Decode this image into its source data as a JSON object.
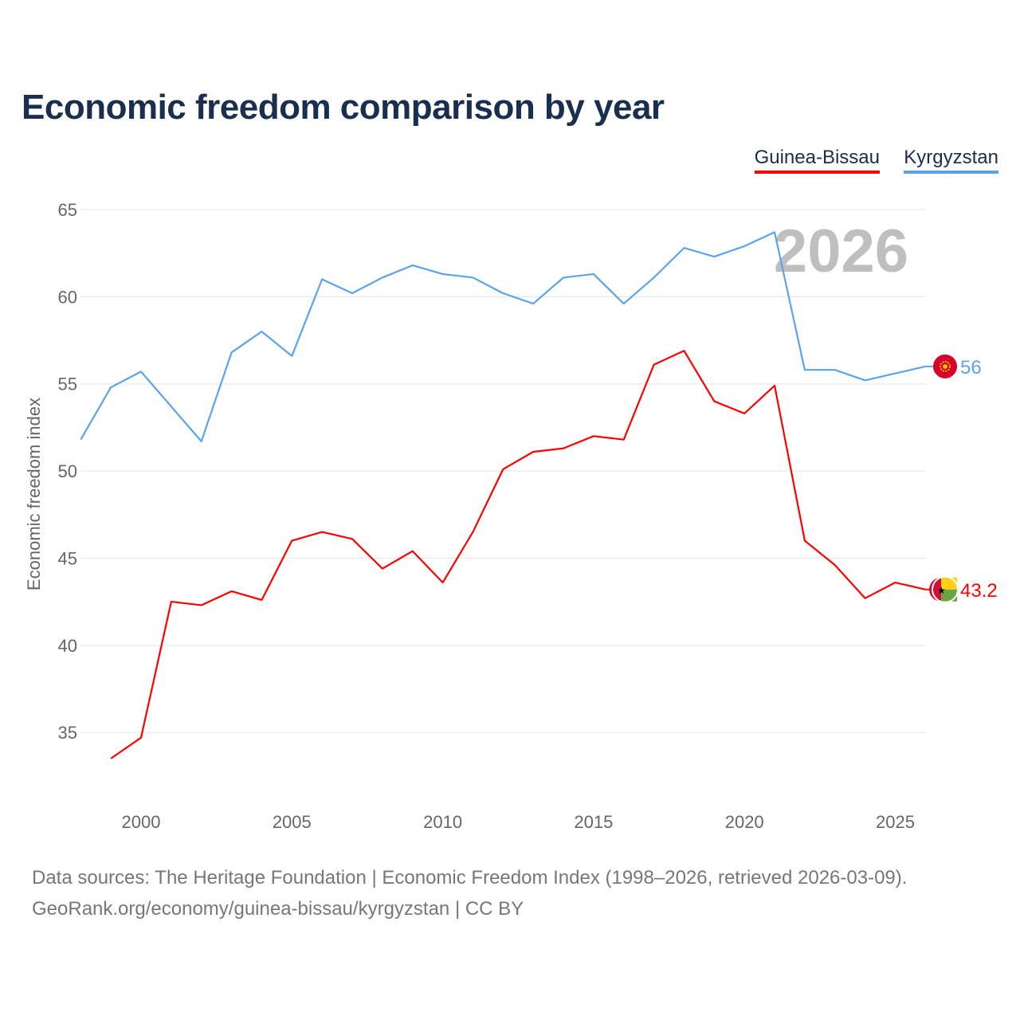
{
  "chart_data": {
    "type": "line",
    "title": "Economic freedom comparison by year",
    "xlabel": "",
    "ylabel": "Economic freedom index",
    "xlim": [
      1998,
      2026
    ],
    "ylim": [
      31,
      66
    ],
    "xticks": [
      2000,
      2005,
      2010,
      2015,
      2020,
      2025
    ],
    "yticks": [
      35,
      40,
      45,
      50,
      55,
      60,
      65
    ],
    "year_watermark": "2026",
    "legend_position": "top-right",
    "grid": true,
    "series": [
      {
        "name": "Guinea-Bissau",
        "color": "#ff0000",
        "end_label": "43.2",
        "x": [
          1999,
          2000,
          2001,
          2002,
          2003,
          2004,
          2005,
          2006,
          2007,
          2008,
          2009,
          2010,
          2011,
          2012,
          2013,
          2014,
          2015,
          2016,
          2017,
          2018,
          2019,
          2020,
          2021,
          2022,
          2023,
          2024,
          2025,
          2026
        ],
        "y": [
          33.5,
          34.7,
          42.5,
          42.3,
          43.1,
          42.6,
          46.0,
          46.5,
          46.1,
          44.4,
          45.4,
          43.6,
          46.5,
          50.1,
          51.1,
          51.3,
          52.0,
          51.8,
          56.1,
          56.9,
          54.0,
          53.3,
          54.9,
          46.0,
          44.6,
          42.7,
          43.6,
          43.2
        ]
      },
      {
        "name": "Kyrgyzstan",
        "color": "#5ba4ea",
        "end_label": "56",
        "x": [
          1998,
          1999,
          2000,
          2002,
          2003,
          2004,
          2005,
          2006,
          2007,
          2008,
          2009,
          2010,
          2011,
          2012,
          2013,
          2014,
          2015,
          2016,
          2017,
          2018,
          2019,
          2020,
          2021,
          2022,
          2023,
          2024,
          2025,
          2026
        ],
        "y": [
          51.8,
          54.8,
          55.7,
          51.7,
          56.8,
          58.0,
          56.6,
          61.0,
          60.2,
          61.1,
          61.8,
          61.3,
          61.1,
          60.2,
          59.6,
          61.1,
          61.3,
          59.6,
          61.1,
          62.8,
          62.3,
          62.9,
          63.7,
          55.8,
          55.8,
          55.2,
          55.6,
          56.0
        ]
      }
    ]
  },
  "footer": {
    "line1": "Data sources: The Heritage Foundation | Economic Freedom Index (1998–2026, retrieved 2026-03-09).",
    "line2": "GeoRank.org/economy/guinea-bissau/kyrgyzstan | CC BY"
  }
}
